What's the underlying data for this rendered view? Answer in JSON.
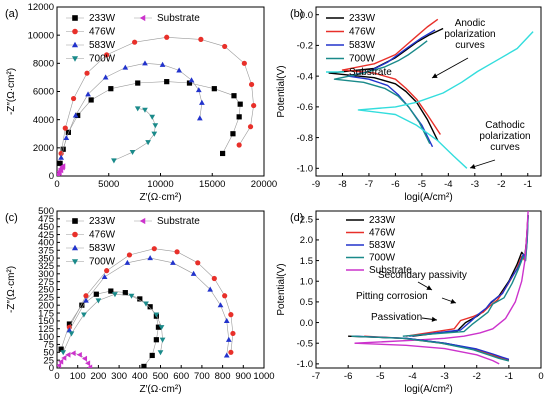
{
  "chart_data": [
    {
      "panel": "(a)",
      "type": "scatter",
      "xlabel": "Z′(Ω·cm²)",
      "ylabel": "-Z″(Ω·cm²)",
      "xlim": [
        0,
        20000
      ],
      "ylim": [
        0,
        12000
      ],
      "xticks": [
        "0",
        "5000",
        "10000",
        "15000",
        "20000"
      ],
      "yticks": [
        "0",
        "2000",
        "4000",
        "6000",
        "8000",
        "10000",
        "12000"
      ],
      "legend_position": "top-left",
      "series": [
        {
          "name": "233W",
          "color": "#000000",
          "marker": "square",
          "x": [
            16000,
            17000,
            17600,
            17700,
            17100,
            15200,
            12800,
            10600,
            7800,
            5200,
            3300,
            2000,
            1100,
            600,
            300
          ],
          "y": [
            1600,
            3000,
            4200,
            5100,
            5700,
            6200,
            6600,
            6700,
            6600,
            6200,
            5400,
            4300,
            3100,
            1900,
            900
          ]
        },
        {
          "name": "476W",
          "color": "#e8302a",
          "marker": "circle",
          "x": [
            17600,
            18700,
            19000,
            18800,
            18100,
            16200,
            13900,
            10600,
            7500,
            4800,
            2900,
            1600,
            800,
            400
          ],
          "y": [
            2200,
            3500,
            5000,
            6500,
            8000,
            9200,
            9700,
            9850,
            9500,
            8600,
            7300,
            5500,
            3400,
            1600
          ]
        },
        {
          "name": "583W",
          "color": "#2233cc",
          "marker": "triangle-up",
          "x": [
            13800,
            14000,
            13700,
            13000,
            11800,
            10200,
            8500,
            6600,
            4700,
            3000,
            1800,
            900,
            400
          ],
          "y": [
            4100,
            5200,
            6100,
            6800,
            7500,
            7900,
            8000,
            7700,
            7000,
            5800,
            4300,
            2700,
            1300
          ]
        },
        {
          "name": "700W",
          "color": "#1a8a8a",
          "marker": "triangle-down",
          "x": [
            5500,
            7300,
            8800,
            9400,
            9500,
            9200,
            8500,
            7800
          ],
          "y": [
            1100,
            1700,
            2400,
            3000,
            3600,
            4200,
            4700,
            4800
          ]
        },
        {
          "name": "Substrate",
          "color": "#cc33cc",
          "marker": "triangle-left",
          "x": [
            100,
            200,
            350,
            500,
            600,
            550,
            400,
            250
          ],
          "y": [
            100,
            300,
            500,
            650,
            700,
            600,
            400,
            200
          ]
        }
      ]
    },
    {
      "panel": "(b)",
      "type": "line",
      "xlabel": "logi(A/cm²)",
      "ylabel": "Potential(V)",
      "xlim": [
        -9,
        -0.5
      ],
      "ylim": [
        -1.05,
        0.05
      ],
      "xticks": [
        "-9",
        "-8",
        "-7",
        "-6",
        "-5",
        "-4",
        "-3",
        "-2",
        "-1"
      ],
      "yticks": [
        "-1.0",
        "-0.8",
        "-0.6",
        "-0.4",
        "-0.2",
        "0.0"
      ],
      "legend_position": "top-left",
      "annotations": [
        {
          "text": [
            "Anodic",
            "polarization",
            "curves"
          ]
        },
        {
          "text": [
            "Cathodic",
            "polarization",
            "curves"
          ]
        }
      ],
      "series": [
        {
          "name": "233W",
          "color": "#000000",
          "x": [
            -4.2,
            -4.7,
            -5.2,
            -5.6,
            -6.0,
            -6.8,
            -8.5,
            -6.8,
            -6.0,
            -5.6,
            -5.2,
            -4.8,
            -4.4
          ],
          "y": [
            -0.09,
            -0.13,
            -0.18,
            -0.23,
            -0.28,
            -0.35,
            -0.38,
            -0.41,
            -0.45,
            -0.5,
            -0.57,
            -0.68,
            -0.82
          ]
        },
        {
          "name": "476W",
          "color": "#e8302a",
          "x": [
            -4.4,
            -4.8,
            -5.2,
            -5.6,
            -6.0,
            -6.8,
            -8.0,
            -6.8,
            -6.0,
            -5.6,
            -5.2,
            -4.8,
            -4.3
          ],
          "y": [
            -0.03,
            -0.08,
            -0.14,
            -0.2,
            -0.26,
            -0.32,
            -0.36,
            -0.38,
            -0.42,
            -0.48,
            -0.55,
            -0.65,
            -0.78
          ]
        },
        {
          "name": "583W",
          "color": "#2233cc",
          "x": [
            -4.5,
            -5.0,
            -5.5,
            -5.9,
            -6.3,
            -7.0,
            -7.8,
            -7.0,
            -6.3,
            -5.9,
            -5.5,
            -5.0,
            -4.6
          ],
          "y": [
            -0.1,
            -0.15,
            -0.21,
            -0.26,
            -0.31,
            -0.37,
            -0.4,
            -0.42,
            -0.46,
            -0.52,
            -0.6,
            -0.72,
            -0.86
          ]
        },
        {
          "name": "700W",
          "color": "#1a8a8a",
          "x": [
            -4.8,
            -5.1,
            -5.5,
            -5.9,
            -6.4,
            -7.2,
            -8.3,
            -7.2,
            -6.4,
            -5.9,
            -5.5,
            -5.1,
            -4.7
          ],
          "y": [
            -0.17,
            -0.21,
            -0.26,
            -0.3,
            -0.34,
            -0.38,
            -0.42,
            -0.44,
            -0.48,
            -0.53,
            -0.6,
            -0.7,
            -0.84
          ]
        },
        {
          "name": "Substrate",
          "color": "#33dddd",
          "x": [
            -0.8,
            -1.4,
            -2.2,
            -2.9,
            -3.5,
            -4.2,
            -5.2,
            -6.0,
            -7.4,
            -6.0,
            -5.2,
            -4.4,
            -3.8,
            -3.3
          ],
          "y": [
            -0.11,
            -0.22,
            -0.3,
            -0.37,
            -0.44,
            -0.51,
            -0.57,
            -0.6,
            -0.62,
            -0.65,
            -0.72,
            -0.82,
            -0.92,
            -1.0
          ]
        }
      ]
    },
    {
      "panel": "(c)",
      "type": "scatter",
      "xlabel": "Z′(Ω·cm²)",
      "ylabel": "-Z″(Ω·cm²)",
      "xlim": [
        0,
        1000
      ],
      "ylim": [
        0,
        500
      ],
      "xticks": [
        "0",
        "100",
        "200",
        "300",
        "400",
        "500",
        "600",
        "700",
        "800",
        "900",
        "1000"
      ],
      "yticks": [
        "0",
        "25",
        "50",
        "75",
        "100",
        "125",
        "150",
        "175",
        "200",
        "225",
        "250",
        "275",
        "300",
        "325",
        "350",
        "375",
        "400",
        "425",
        "450",
        "475",
        "500"
      ],
      "legend_position": "top-left",
      "series": [
        {
          "name": "233W",
          "color": "#000000",
          "marker": "square",
          "x": [
            420,
            460,
            480,
            490,
            480,
            450,
            400,
            330,
            260,
            190,
            120,
            60,
            20
          ],
          "y": [
            5,
            40,
            90,
            130,
            165,
            195,
            220,
            240,
            245,
            235,
            200,
            140,
            60
          ]
        },
        {
          "name": "476W",
          "color": "#e8302a",
          "marker": "circle",
          "x": [
            840,
            850,
            840,
            810,
            760,
            680,
            580,
            470,
            350,
            240,
            140,
            60
          ],
          "y": [
            50,
            110,
            170,
            230,
            285,
            335,
            370,
            380,
            360,
            310,
            230,
            130
          ]
        },
        {
          "name": "583W",
          "color": "#2233cc",
          "marker": "triangle-up",
          "x": [
            820,
            830,
            820,
            790,
            740,
            660,
            560,
            450,
            340,
            230,
            140,
            60
          ],
          "y": [
            40,
            90,
            150,
            200,
            250,
            300,
            335,
            350,
            335,
            290,
            215,
            120
          ]
        },
        {
          "name": "700W",
          "color": "#1a8a8a",
          "marker": "triangle-down",
          "x": [
            500,
            510,
            505,
            480,
            430,
            360,
            280,
            200,
            130,
            70,
            30
          ],
          "y": [
            50,
            90,
            130,
            170,
            205,
            230,
            235,
            215,
            170,
            110,
            50
          ]
        },
        {
          "name": "Substrate",
          "color": "#cc33cc",
          "marker": "triangle-left",
          "x": [
            160,
            150,
            135,
            110,
            80,
            55,
            35,
            20,
            10
          ],
          "y": [
            2,
            15,
            30,
            42,
            47,
            42,
            32,
            20,
            8
          ]
        }
      ]
    },
    {
      "panel": "(d)",
      "type": "line",
      "xlabel": "logi(A/cm²)",
      "ylabel": "Potential(V)",
      "xlim": [
        -7,
        0
      ],
      "ylim": [
        -1.1,
        2.7
      ],
      "xticks": [
        "-7",
        "-6",
        "-5",
        "-4",
        "-3",
        "-2",
        "-1",
        "0"
      ],
      "yticks": [
        "-1.0",
        "-0.5",
        "0.0",
        "0.5",
        "1.0",
        "1.5",
        "2.0",
        "2.5"
      ],
      "legend_position": "top-right",
      "annotations": [
        {
          "text": [
            "Secondary passivity"
          ]
        },
        {
          "text": [
            "Pitting corrosion"
          ]
        },
        {
          "text": [
            "Passivation"
          ]
        }
      ],
      "series": [
        {
          "name": "233W",
          "color": "#000000",
          "x": [
            -4.0,
            -2.6,
            -2.35,
            -2.0,
            -1.75,
            -1.6,
            -1.3,
            -1.0,
            -0.75,
            -0.6,
            -0.5,
            -0.45,
            -0.4
          ],
          "y": [
            -0.33,
            -0.2,
            0.0,
            0.15,
            0.3,
            0.45,
            0.65,
            1.0,
            1.4,
            1.7,
            1.6,
            2.0,
            2.6
          ]
        },
        {
          "name": "476W",
          "color": "#e8302a",
          "x": [
            -4.2,
            -2.7,
            -2.5,
            -2.1,
            -1.8,
            -1.6,
            -1.35,
            -1.05,
            -0.75,
            -0.6,
            -0.5,
            -0.45,
            -0.4
          ],
          "y": [
            -0.33,
            -0.15,
            0.05,
            0.15,
            0.25,
            0.4,
            0.55,
            0.9,
            1.3,
            1.6,
            1.5,
            2.0,
            2.6
          ]
        },
        {
          "name": "583W",
          "color": "#2233cc",
          "x": [
            -4.1,
            -2.5,
            -2.2,
            -1.95,
            -1.7,
            -1.55,
            -1.2,
            -0.95,
            -0.7,
            -0.55,
            -0.48,
            -0.43,
            -0.4
          ],
          "y": [
            -0.33,
            -0.18,
            0.02,
            0.2,
            0.35,
            0.5,
            0.7,
            1.05,
            1.35,
            1.65,
            1.55,
            2.0,
            2.6
          ]
        },
        {
          "name": "700W",
          "color": "#1a8a8a",
          "x": [
            -4.3,
            -2.4,
            -2.15,
            -1.9,
            -1.65,
            -1.5,
            -1.15,
            -0.9,
            -0.7,
            -0.55,
            -0.48,
            -0.43,
            -0.4
          ],
          "y": [
            -0.33,
            -0.22,
            -0.05,
            0.1,
            0.25,
            0.45,
            0.6,
            0.95,
            1.3,
            1.6,
            1.5,
            2.0,
            2.6
          ]
        },
        {
          "name": "Substrate",
          "color": "#cc33cc",
          "x": [
            -5.8,
            -4.0,
            -3.0,
            -2.4,
            -1.9,
            -1.5,
            -1.1,
            -0.8,
            -0.6,
            -0.5,
            -0.45,
            -0.4
          ],
          "y": [
            -0.5,
            -0.43,
            -0.38,
            -0.33,
            -0.25,
            -0.15,
            0.1,
            0.5,
            1.0,
            1.5,
            2.0,
            2.7
          ]
        },
        {
          "name": "233W-cathodic",
          "color": "#000000",
          "legend": false,
          "x": [
            -6.0,
            -4.2,
            -3.0,
            -2.0,
            -1.5,
            -1.3,
            -1.0
          ],
          "y": [
            -0.33,
            -0.38,
            -0.5,
            -0.65,
            -0.78,
            -0.85,
            -0.9
          ]
        },
        {
          "name": "476W-cathodic",
          "color": "#e8302a",
          "legend": false,
          "x": [
            -5.5,
            -4.3,
            -3.1,
            -2.0,
            -1.5,
            -1.2,
            -1.0
          ],
          "y": [
            -0.33,
            -0.38,
            -0.5,
            -0.66,
            -0.78,
            -0.86,
            -0.92
          ]
        },
        {
          "name": "583W-cathodic",
          "color": "#2233cc",
          "legend": false,
          "x": [
            -5.8,
            -4.2,
            -3.0,
            -2.0,
            -1.5,
            -1.2,
            -1.0
          ],
          "y": [
            -0.33,
            -0.38,
            -0.5,
            -0.64,
            -0.76,
            -0.84,
            -0.89
          ]
        },
        {
          "name": "700W-cathodic",
          "color": "#1a8a8a",
          "legend": false,
          "x": [
            -5.9,
            -4.3,
            -3.1,
            -2.1,
            -1.6,
            -1.3,
            -1.0
          ],
          "y": [
            -0.33,
            -0.38,
            -0.5,
            -0.66,
            -0.79,
            -0.87,
            -0.93
          ]
        },
        {
          "name": "Substrate-cathodic",
          "color": "#cc33cc",
          "legend": false,
          "x": [
            -5.8,
            -4.2,
            -3.0,
            -2.0,
            -1.5,
            -1.3
          ],
          "y": [
            -0.5,
            -0.55,
            -0.63,
            -0.78,
            -0.92,
            -1.0
          ]
        }
      ]
    }
  ]
}
